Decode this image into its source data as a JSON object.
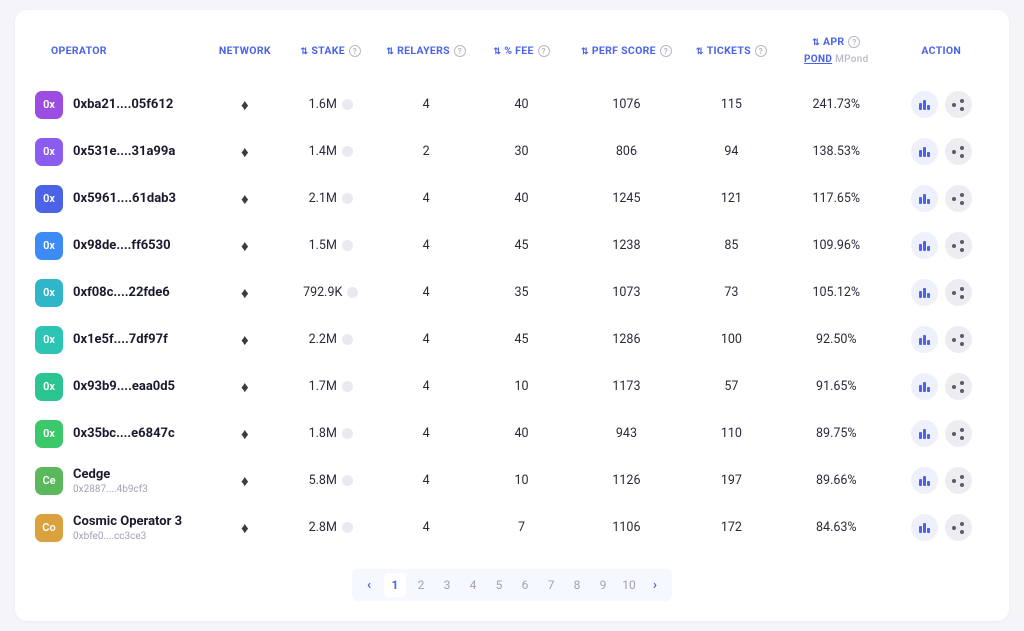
{
  "columns": {
    "operator": "OPERATOR",
    "network": "NETWORK",
    "stake": "STAKE",
    "relayers": "RELAYERS",
    "fee": "% FEE",
    "perf": "PERF SCORE",
    "tickets": "TICKETS",
    "apr": "APR",
    "apr_pond": "POND",
    "apr_mpond": "MPond",
    "action": "ACTION"
  },
  "rows": [
    {
      "badge": "0x",
      "badge_color": "#9b4de0",
      "name": "0xba21....05f612",
      "sub": "",
      "stake": "1.6M",
      "relayers": "4",
      "fee": "40",
      "perf": "1076",
      "tickets": "115",
      "apr": "241.73%"
    },
    {
      "badge": "0x",
      "badge_color": "#8a5cf0",
      "name": "0x531e....31a99a",
      "sub": "",
      "stake": "1.4M",
      "relayers": "2",
      "fee": "30",
      "perf": "806",
      "tickets": "94",
      "apr": "138.53%"
    },
    {
      "badge": "0x",
      "badge_color": "#4a63e7",
      "name": "0x5961....61dab3",
      "sub": "",
      "stake": "2.1M",
      "relayers": "4",
      "fee": "40",
      "perf": "1245",
      "tickets": "121",
      "apr": "117.65%"
    },
    {
      "badge": "0x",
      "badge_color": "#3d8bf5",
      "name": "0x98de....ff6530",
      "sub": "",
      "stake": "1.5M",
      "relayers": "4",
      "fee": "45",
      "perf": "1238",
      "tickets": "85",
      "apr": "109.96%"
    },
    {
      "badge": "0x",
      "badge_color": "#2fb6c9",
      "name": "0xf08c....22fde6",
      "sub": "",
      "stake": "792.9K",
      "relayers": "4",
      "fee": "35",
      "perf": "1073",
      "tickets": "73",
      "apr": "105.12%"
    },
    {
      "badge": "0x",
      "badge_color": "#2cc4b3",
      "name": "0x1e5f....7df97f",
      "sub": "",
      "stake": "2.2M",
      "relayers": "4",
      "fee": "45",
      "perf": "1286",
      "tickets": "100",
      "apr": "92.50%"
    },
    {
      "badge": "0x",
      "badge_color": "#2cc490",
      "name": "0x93b9....eaa0d5",
      "sub": "",
      "stake": "1.7M",
      "relayers": "4",
      "fee": "10",
      "perf": "1173",
      "tickets": "57",
      "apr": "91.65%"
    },
    {
      "badge": "0x",
      "badge_color": "#3bc86b",
      "name": "0x35bc....e6847c",
      "sub": "",
      "stake": "1.8M",
      "relayers": "4",
      "fee": "40",
      "perf": "943",
      "tickets": "110",
      "apr": "89.75%"
    },
    {
      "badge": "Ce",
      "badge_color": "#5cb85c",
      "name": "Cedge",
      "sub": "0x2887....4b9cf3",
      "stake": "5.8M",
      "relayers": "4",
      "fee": "10",
      "perf": "1126",
      "tickets": "197",
      "apr": "89.66%"
    },
    {
      "badge": "Co",
      "badge_color": "#d9a23c",
      "name": "Cosmic Operator 3",
      "sub": "0xbfe0....cc3ce3",
      "stake": "2.8M",
      "relayers": "4",
      "fee": "7",
      "perf": "1106",
      "tickets": "172",
      "apr": "84.63%"
    }
  ],
  "pagination": {
    "pages": [
      "1",
      "2",
      "3",
      "4",
      "5",
      "6",
      "7",
      "8",
      "9",
      "10"
    ],
    "active": "1"
  },
  "col_widths": {
    "operator": "18%",
    "network": "8%",
    "stake": "10%",
    "relayers": "10%",
    "fee": "10%",
    "perf": "12%",
    "tickets": "10%",
    "apr": "12%",
    "action": "10%"
  }
}
